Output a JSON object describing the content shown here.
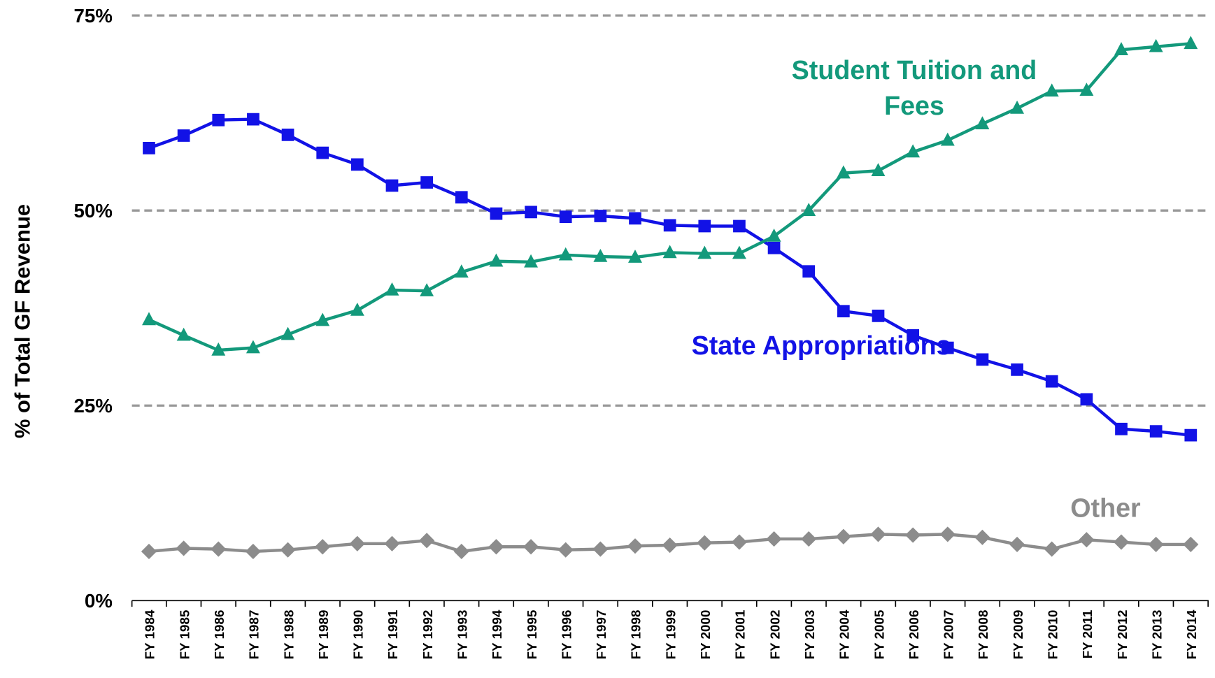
{
  "chart_data": {
    "type": "line",
    "y_label": "% of Total GF Revenue",
    "categories": [
      "FY 1984",
      "FY 1985",
      "FY 1986",
      "FY 1987",
      "FY 1988",
      "FY 1989",
      "FY 1990",
      "FY 1991",
      "FY 1992",
      "FY 1993",
      "FY 1994",
      "FY 1995",
      "FY 1996",
      "FY 1997",
      "FY 1998",
      "FY 1999",
      "FY 2000",
      "FY 2001",
      "FY 2002",
      "FY 2003",
      "FY 2004",
      "FY 2005",
      "FY 2006",
      "FY 2007",
      "FY 2008",
      "FY 2009",
      "FY 2010",
      "FY 2011",
      "FY 2012",
      "FY 2013",
      "FY 2014"
    ],
    "series": [
      {
        "name": "State Appropriations",
        "color": "#1212e6",
        "marker": "square",
        "values": [
          58.0,
          59.6,
          61.6,
          61.7,
          59.7,
          57.4,
          55.9,
          53.2,
          53.6,
          51.7,
          49.6,
          49.8,
          49.2,
          49.3,
          49.0,
          48.1,
          48.0,
          48.0,
          45.2,
          42.2,
          37.1,
          36.5,
          34.0,
          32.4,
          30.9,
          29.6,
          28.1,
          25.8,
          22.0,
          21.7,
          21.2
        ]
      },
      {
        "name": "Student Tuition and Fees",
        "color": "#13997b",
        "marker": "triangle",
        "values": [
          36.0,
          34.0,
          32.1,
          32.4,
          34.1,
          35.9,
          37.2,
          39.8,
          39.7,
          42.1,
          43.5,
          43.4,
          44.3,
          44.1,
          44.0,
          44.6,
          44.5,
          44.5,
          46.7,
          50.0,
          54.8,
          55.1,
          57.5,
          59.0,
          61.1,
          63.1,
          65.3,
          65.4,
          70.6,
          71.0,
          71.4
        ]
      },
      {
        "name": "Other",
        "color": "#8c8c8c",
        "marker": "diamond",
        "values": [
          6.3,
          6.7,
          6.6,
          6.3,
          6.5,
          6.9,
          7.3,
          7.3,
          7.7,
          6.3,
          6.9,
          6.9,
          6.5,
          6.6,
          7.0,
          7.1,
          7.4,
          7.5,
          7.9,
          7.9,
          8.2,
          8.5,
          8.4,
          8.5,
          8.1,
          7.2,
          6.6,
          7.8,
          7.5,
          7.2,
          7.2
        ]
      }
    ],
    "ylim": [
      0,
      75
    ],
    "yticks": [
      {
        "value": 0,
        "label": "0%"
      },
      {
        "value": 25,
        "label": "25%"
      },
      {
        "value": 50,
        "label": "50%"
      },
      {
        "value": 75,
        "label": "75%"
      }
    ],
    "grid": true
  }
}
